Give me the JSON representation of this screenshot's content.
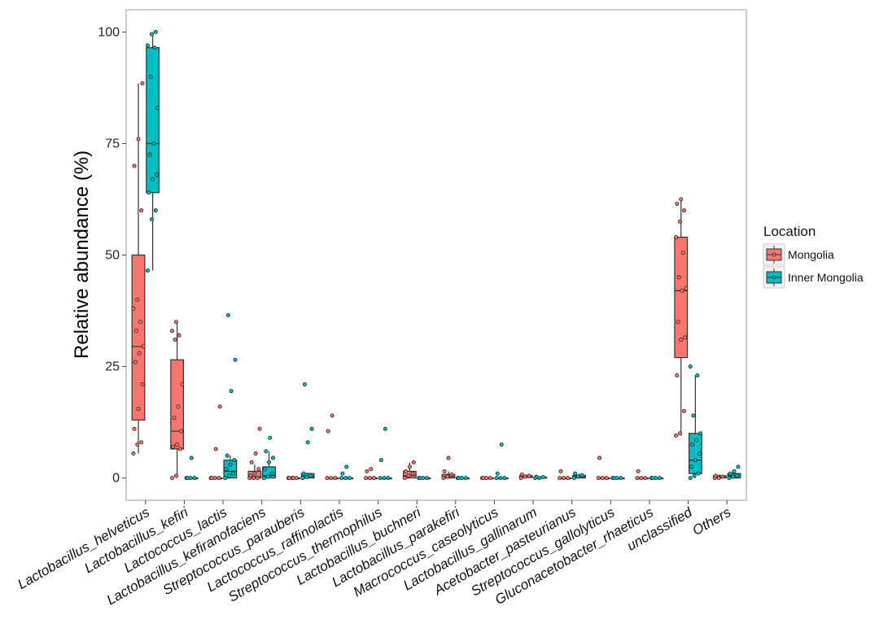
{
  "chart_data": {
    "type": "boxplot",
    "ylabel": "Relative abundance (%)",
    "xlabel": "",
    "ylim": [
      -5,
      105
    ],
    "yticks": [
      0,
      25,
      50,
      75,
      100
    ],
    "categories": [
      "Lactobacillus_helveticus",
      "Lactobacillus_kefiri",
      "Lactococcus_lactis",
      "Lactobacillus_kefiranofaciens",
      "Streptococcus_parauberis",
      "Lactococcus_raffinolactis",
      "Streptococcus_thermophilus",
      "Lactobacillus_buchneri",
      "Lactobacillus_parakefiri",
      "Macrococcus_caseolyticus",
      "Lactobacillus_gallinarum",
      "Acetobacter_pasteurianus",
      "Streptococcus_gallolyticus",
      "Gluconacetobacter_rhaeticus",
      "unclassified",
      "Others"
    ],
    "legend": {
      "title": "Location",
      "position": "right"
    },
    "series": [
      {
        "name": "Mongolia",
        "color": "#F8766D",
        "boxes": [
          {
            "min": 5.5,
            "q1": 13,
            "median": 29.5,
            "q3": 50,
            "max": 88.5,
            "points": [
              5.5,
              7.5,
              8,
              11,
              15.5,
              21,
              26,
              28,
              29.5,
              33,
              35,
              38,
              40,
              60,
              70,
              76,
              88.5
            ]
          },
          {
            "min": 0,
            "q1": 6.5,
            "median": 10.5,
            "q3": 26.5,
            "max": 35,
            "points": [
              0,
              0.5,
              6.5,
              7,
              7.5,
              10.5,
              13.5,
              16,
              21,
              31,
              32,
              33,
              35
            ]
          },
          {
            "min": 0,
            "q1": 0,
            "median": 0,
            "q3": 0,
            "max": 0,
            "points": [
              0,
              0,
              0,
              0,
              6.5,
              16
            ]
          },
          {
            "min": 0,
            "q1": 0,
            "median": 0.3,
            "q3": 1.5,
            "max": 3,
            "points": [
              0,
              0,
              0,
              0.5,
              1,
              2,
              3.5,
              5.5,
              11
            ]
          },
          {
            "min": 0,
            "q1": 0,
            "median": 0,
            "q3": 0,
            "max": 0,
            "points": [
              0,
              0,
              0,
              0,
              0
            ]
          },
          {
            "min": 0,
            "q1": 0,
            "median": 0,
            "q3": 0,
            "max": 0,
            "points": [
              0,
              0,
              0,
              10.5,
              14
            ]
          },
          {
            "min": 0,
            "q1": 0,
            "median": 0,
            "q3": 0,
            "max": 0,
            "points": [
              0,
              0,
              0,
              1.5,
              2
            ]
          },
          {
            "min": 0,
            "q1": 0,
            "median": 0.5,
            "q3": 1.5,
            "max": 3.5,
            "points": [
              0,
              0.5,
              1,
              1.5,
              2.5,
              3.5
            ]
          },
          {
            "min": 0,
            "q1": 0,
            "median": 0.3,
            "q3": 0.8,
            "max": 1.5,
            "points": [
              0,
              0.3,
              0.8,
              1.5,
              4.5
            ]
          },
          {
            "min": 0,
            "q1": 0,
            "median": 0,
            "q3": 0,
            "max": 0,
            "points": [
              0,
              0,
              0,
              0
            ]
          },
          {
            "min": 0,
            "q1": 0.1,
            "median": 0.3,
            "q3": 0.5,
            "max": 0.8,
            "points": [
              0,
              0.3,
              0.5,
              0.8
            ]
          },
          {
            "min": 0,
            "q1": 0,
            "median": 0,
            "q3": 0,
            "max": 0,
            "points": [
              0,
              0,
              0,
              1.5
            ]
          },
          {
            "min": 0,
            "q1": 0,
            "median": 0,
            "q3": 0,
            "max": 0,
            "points": [
              0,
              0,
              0,
              4.5
            ]
          },
          {
            "min": 0,
            "q1": 0,
            "median": 0,
            "q3": 0,
            "max": 0,
            "points": [
              0,
              0,
              0,
              1.5
            ]
          },
          {
            "min": 9.5,
            "q1": 27,
            "median": 42,
            "q3": 54,
            "max": 62.5,
            "points": [
              9.5,
              10,
              15,
              23,
              31,
              31.5,
              35,
              42,
              42.5,
              45,
              50.5,
              54,
              57.5,
              60,
              61.5,
              62.5
            ]
          },
          {
            "min": 0,
            "q1": 0,
            "median": 0.2,
            "q3": 0.5,
            "max": 0.8,
            "points": [
              0,
              0,
              0.3,
              0.5
            ]
          }
        ]
      },
      {
        "name": "Inner Mongolia",
        "color": "#00BFC4",
        "boxes": [
          {
            "min": 46.5,
            "q1": 64,
            "median": 75,
            "q3": 96.5,
            "max": 100,
            "points": [
              46.5,
              58,
              60,
              64,
              67,
              68,
              72.5,
              75,
              83,
              90,
              96.5,
              97,
              99.5,
              100
            ]
          },
          {
            "min": 0,
            "q1": 0,
            "median": 0,
            "q3": 0,
            "max": 0,
            "points": [
              0,
              0,
              0,
              0,
              4.5
            ]
          },
          {
            "min": 0,
            "q1": 0,
            "median": 1.5,
            "q3": 4,
            "max": 5,
            "points": [
              0,
              0.5,
              1,
              2,
              3,
              4,
              5,
              19.5,
              26.5,
              36.5
            ]
          },
          {
            "min": 0,
            "q1": 0,
            "median": 0.5,
            "q3": 2.5,
            "max": 6,
            "points": [
              0,
              0.3,
              1,
              2,
              3.5,
              4.5,
              6,
              9
            ]
          },
          {
            "min": 0,
            "q1": 0,
            "median": 0.3,
            "q3": 1,
            "max": 1.2,
            "points": [
              0,
              0.2,
              0.5,
              1,
              8,
              11,
              21
            ]
          },
          {
            "min": 0,
            "q1": 0,
            "median": 0,
            "q3": 0,
            "max": 0,
            "points": [
              0,
              0,
              0,
              1,
              2.5
            ]
          },
          {
            "min": 0,
            "q1": 0,
            "median": 0,
            "q3": 0,
            "max": 0,
            "points": [
              0,
              0,
              0,
              4,
              11
            ]
          },
          {
            "min": 0,
            "q1": 0,
            "median": 0,
            "q3": 0,
            "max": 0,
            "points": [
              0,
              0,
              0,
              0
            ]
          },
          {
            "min": 0,
            "q1": 0,
            "median": 0,
            "q3": 0,
            "max": 0,
            "points": [
              0,
              0,
              0,
              0
            ]
          },
          {
            "min": 0,
            "q1": 0,
            "median": 0,
            "q3": 0,
            "max": 0,
            "points": [
              0,
              0,
              0,
              1,
              7.5
            ]
          },
          {
            "min": 0,
            "q1": 0,
            "median": 0,
            "q3": 0.2,
            "max": 0.3,
            "points": [
              0,
              0,
              0.2,
              0.3
            ]
          },
          {
            "min": 0,
            "q1": 0,
            "median": 0.3,
            "q3": 0.6,
            "max": 1,
            "points": [
              0,
              0.3,
              0.6,
              1
            ]
          },
          {
            "min": 0,
            "q1": 0,
            "median": 0,
            "q3": 0,
            "max": 0,
            "points": [
              0,
              0,
              0,
              0
            ]
          },
          {
            "min": 0,
            "q1": 0,
            "median": 0,
            "q3": 0,
            "max": 0,
            "points": [
              0,
              0,
              0,
              0
            ]
          },
          {
            "min": 0,
            "q1": 1,
            "median": 4,
            "q3": 10,
            "max": 23,
            "points": [
              0,
              0.5,
              1,
              2.5,
              4,
              5.5,
              7.5,
              8.5,
              10,
              14,
              23,
              25
            ]
          },
          {
            "min": 0,
            "q1": 0,
            "median": 0.5,
            "q3": 1,
            "max": 1.5,
            "points": [
              0,
              0.3,
              0.5,
              1,
              1.5,
              2.5
            ]
          }
        ]
      }
    ]
  }
}
